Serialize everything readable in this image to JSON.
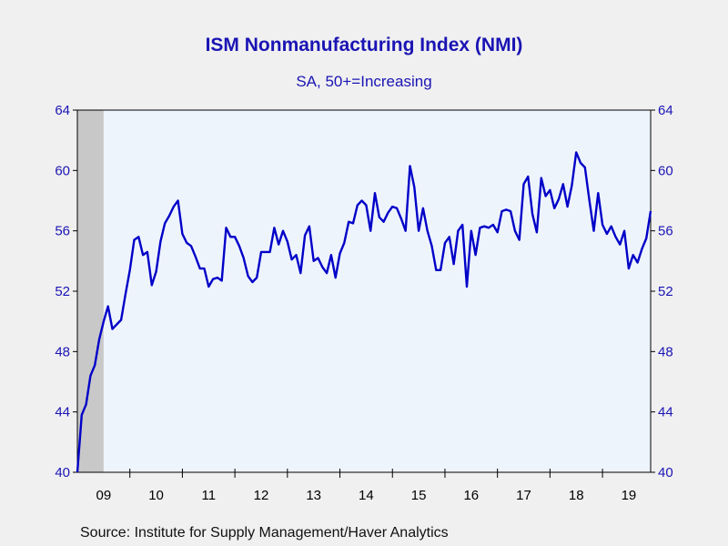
{
  "chart_data": {
    "type": "line",
    "title": "ISM Nonmanufacturing Index (NMI)",
    "subtitle": "SA, 50+=Increasing",
    "source": "Source:  Institute for Supply Management/Haver Analytics",
    "ylim": [
      40,
      64
    ],
    "yticks": [
      40,
      44,
      48,
      52,
      56,
      60,
      64
    ],
    "ytick_labels": [
      "40",
      "44",
      "48",
      "52",
      "56",
      "60",
      "64"
    ],
    "xlim": [
      2009.0,
      2019.917
    ],
    "xtick_labels": [
      "09",
      "10",
      "11",
      "12",
      "13",
      "14",
      "15",
      "16",
      "17",
      "18",
      "19"
    ],
    "recession_shading": {
      "start": 2009.0,
      "end": 2009.5
    },
    "grid": false,
    "colors": {
      "line": "#0000c8",
      "plot_bg": "#eef4fc",
      "axis_text": "#1a14b4",
      "recession": "#c8c8c8"
    },
    "series": [
      {
        "x_start": 2009.0,
        "x_step_months": 1,
        "values": [
          40.0,
          43.8,
          44.5,
          46.4,
          47.1,
          48.8,
          50.0,
          51.0,
          49.5,
          49.8,
          50.1,
          51.8,
          53.4,
          55.4,
          55.6,
          54.4,
          54.6,
          52.4,
          53.3,
          55.3,
          56.5,
          57.0,
          57.6,
          58.0,
          55.8,
          55.2,
          55.0,
          54.3,
          53.5,
          53.5,
          52.3,
          52.8,
          52.9,
          52.7,
          56.2,
          55.6,
          55.6,
          55.0,
          54.2,
          53.0,
          52.6,
          52.9,
          54.6,
          54.6,
          54.6,
          56.2,
          55.1,
          56.0,
          55.3,
          54.1,
          54.4,
          53.2,
          55.7,
          56.3,
          54.0,
          54.2,
          53.6,
          53.2,
          54.4,
          52.9,
          54.5,
          55.2,
          56.6,
          56.5,
          57.7,
          58.0,
          57.7,
          56.0,
          58.5,
          56.9,
          56.6,
          57.2,
          57.6,
          57.5,
          56.8,
          56.0,
          60.3,
          58.9,
          56.0,
          57.5,
          56.0,
          55.0,
          53.4,
          53.4,
          55.2,
          55.6,
          53.8,
          56.0,
          56.4,
          52.3,
          56.0,
          54.4,
          56.2,
          56.3,
          56.2,
          56.4,
          55.9,
          57.3,
          57.4,
          57.3,
          56.0,
          55.4,
          59.1,
          59.6,
          57.1,
          55.9,
          59.5,
          58.3,
          58.7,
          57.5,
          58.1,
          59.1,
          57.6,
          59.0,
          61.2,
          60.5,
          60.2,
          58.0,
          56.0,
          58.5,
          56.4,
          55.8,
          56.3,
          55.6,
          55.1,
          56.0,
          53.5,
          54.4,
          53.9,
          54.8,
          55.5,
          57.3
        ]
      }
    ]
  }
}
